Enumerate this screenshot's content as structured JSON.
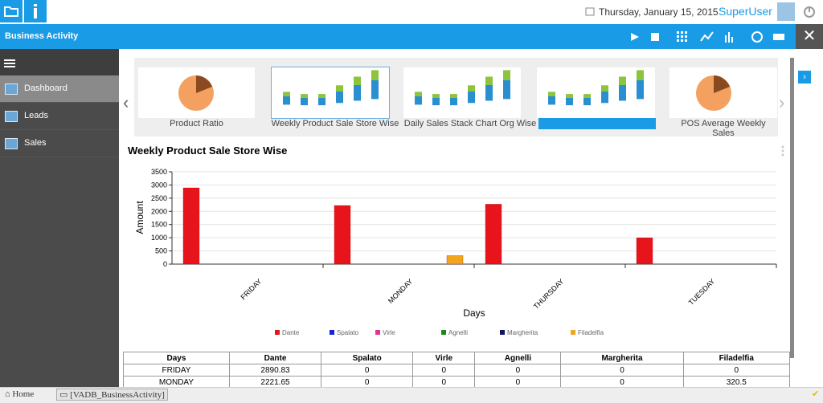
{
  "header": {
    "date": "Thursday, January 15, 2015",
    "user": "SuperUser"
  },
  "toolbar": {
    "title": "Business Activity"
  },
  "sidebar": {
    "items": [
      "Dashboard",
      "Leads",
      "Sales"
    ]
  },
  "thumbnails": [
    "Product Ratio",
    "Weekly Product Sale Store Wise",
    "Daily Sales Stack Chart Org Wise",
    "POS Average Weekly Sales"
  ],
  "chart_data": {
    "type": "bar",
    "title": "Weekly Product Sale Store Wise",
    "x_label": "Days",
    "y_label": "Amount",
    "categories": [
      "FRIDAY",
      "MONDAY",
      "THURSDAY",
      "TUESDAY"
    ],
    "series": [
      {
        "name": "Dante",
        "color": "#e8141b",
        "values": [
          2890.83,
          2221.65,
          2270,
          1000
        ]
      },
      {
        "name": "Spalato",
        "color": "#1424d8",
        "values": [
          0,
          0,
          0,
          0
        ]
      },
      {
        "name": "Virle",
        "color": "#e0358f",
        "values": [
          0,
          0,
          0,
          0
        ]
      },
      {
        "name": "Agnelli",
        "color": "#1a8a1a",
        "values": [
          0,
          0,
          0,
          0
        ]
      },
      {
        "name": "Margherita",
        "color": "#141460",
        "values": [
          0,
          0,
          0,
          0
        ]
      },
      {
        "name": "Filadelfia",
        "color": "#f3a51b",
        "values": [
          0,
          320.5,
          0,
          0
        ]
      }
    ],
    "ylim": [
      0,
      3500
    ],
    "yticks": [
      0,
      500,
      1000,
      1500,
      2000,
      2500,
      3000,
      3500
    ],
    "grid": true,
    "legend": "bottom"
  },
  "table": {
    "columns": [
      "Days",
      "Dante",
      "Spalato",
      "Virle",
      "Agnelli",
      "Margherita",
      "Filadelfia"
    ],
    "rows": [
      [
        "FRIDAY",
        "2890.83",
        "0",
        "0",
        "0",
        "0",
        "0"
      ],
      [
        "MONDAY",
        "2221.65",
        "0",
        "0",
        "0",
        "0",
        "320.5"
      ]
    ]
  },
  "status_bar": {
    "home": "Home",
    "tab": "[VADB_BusinessActivity]"
  }
}
